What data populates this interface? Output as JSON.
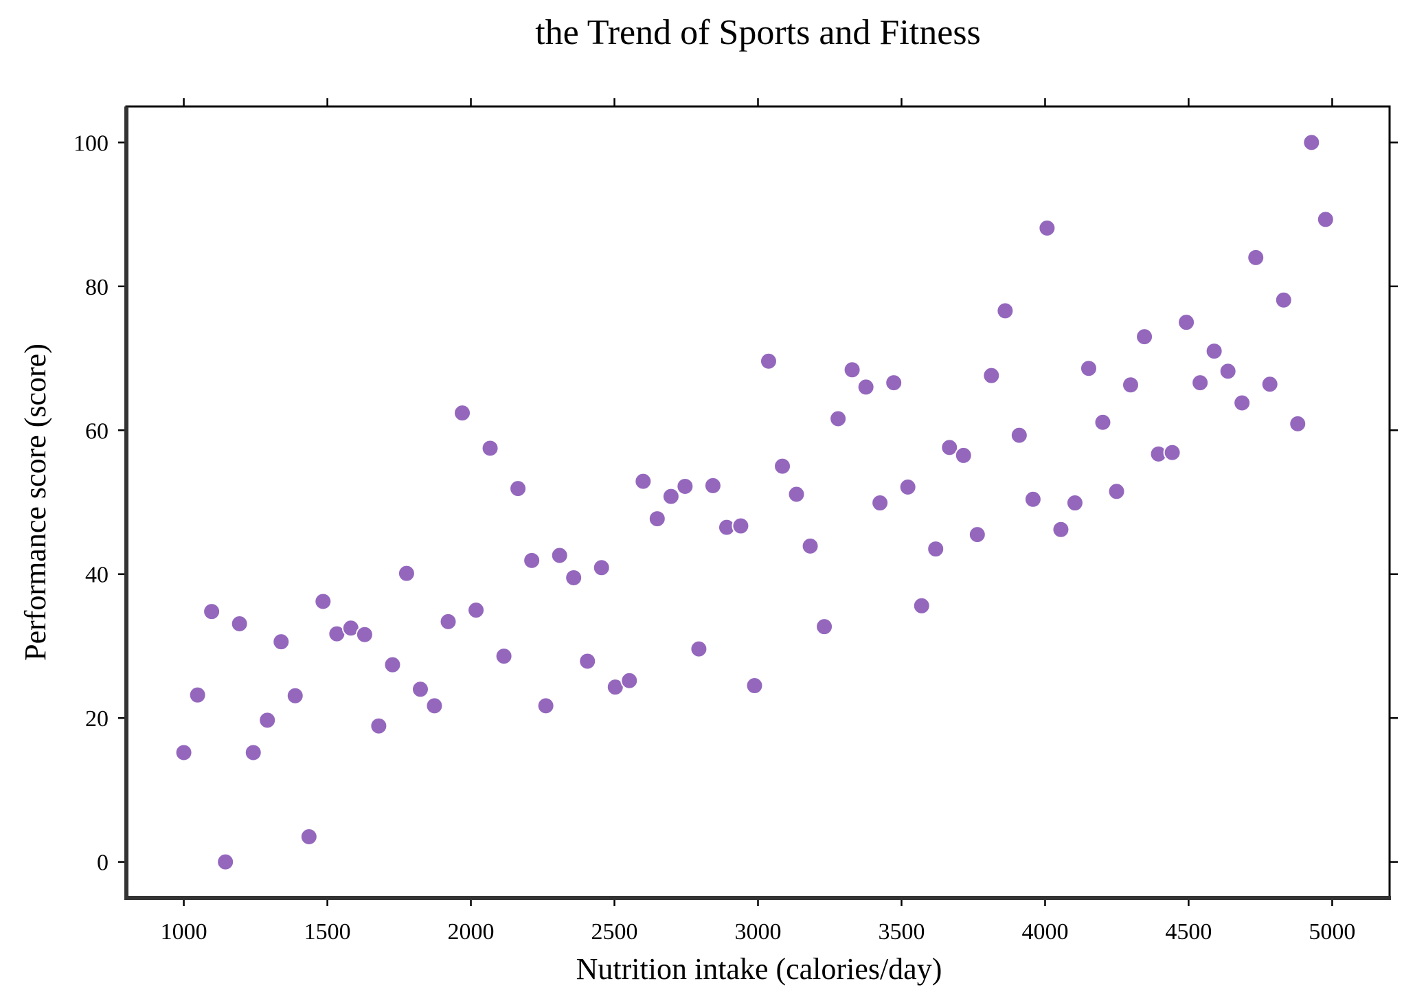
{
  "chart_data": {
    "type": "scatter",
    "title": "the Trend of Sports and Fitness",
    "xlabel": "Nutrition intake (calories/day)",
    "ylabel": "Performance score (score)",
    "xlim": [
      800,
      5200
    ],
    "ylim": [
      -5,
      105
    ],
    "xticks": [
      1000,
      1500,
      2000,
      2500,
      3000,
      3500,
      4000,
      4500,
      5000
    ],
    "yticks": [
      0,
      20,
      40,
      60,
      80,
      100
    ],
    "grid": false,
    "point_color": "#9467bd",
    "x": [
      1000,
      1048,
      1097,
      1145,
      1194,
      1242,
      1291,
      1339,
      1388,
      1436,
      1485,
      1533,
      1582,
      1630,
      1679,
      1727,
      1776,
      1824,
      1873,
      1921,
      1970,
      2018,
      2067,
      2115,
      2164,
      2212,
      2261,
      2309,
      2358,
      2406,
      2455,
      2503,
      2552,
      2600,
      2649,
      2697,
      2746,
      2794,
      2843,
      2891,
      2940,
      2988,
      3037,
      3085,
      3134,
      3182,
      3231,
      3279,
      3328,
      3376,
      3425,
      3473,
      3522,
      3570,
      3619,
      3667,
      3716,
      3764,
      3813,
      3861,
      3910,
      3958,
      4007,
      4055,
      4104,
      4152,
      4201,
      4249,
      4298,
      4346,
      4395,
      4443,
      4492,
      4540,
      4589,
      4637,
      4686,
      4734,
      4783,
      4831,
      4880,
      4928,
      4977
    ],
    "y": [
      15.2,
      23.2,
      34.8,
      0.0,
      33.1,
      15.2,
      19.7,
      30.6,
      23.1,
      3.5,
      36.2,
      31.7,
      32.5,
      31.6,
      18.9,
      27.4,
      40.1,
      24.0,
      21.7,
      33.4,
      62.4,
      35.0,
      57.5,
      28.6,
      51.9,
      41.9,
      21.7,
      42.6,
      39.5,
      27.9,
      40.9,
      24.3,
      25.2,
      52.9,
      47.7,
      50.8,
      52.2,
      29.6,
      52.3,
      46.5,
      46.7,
      24.5,
      69.6,
      55.0,
      51.1,
      43.9,
      32.7,
      61.6,
      68.4,
      66.0,
      49.9,
      66.6,
      52.1,
      35.6,
      43.5,
      57.6,
      56.5,
      45.5,
      67.6,
      76.6,
      59.3,
      50.4,
      88.1,
      46.2,
      49.9,
      68.6,
      61.1,
      51.5,
      66.3,
      73.0,
      56.7,
      56.9,
      75.0,
      66.6,
      71.0,
      68.2,
      63.8,
      84.0,
      66.4,
      78.1,
      60.9,
      100.0,
      89.3
    ]
  }
}
